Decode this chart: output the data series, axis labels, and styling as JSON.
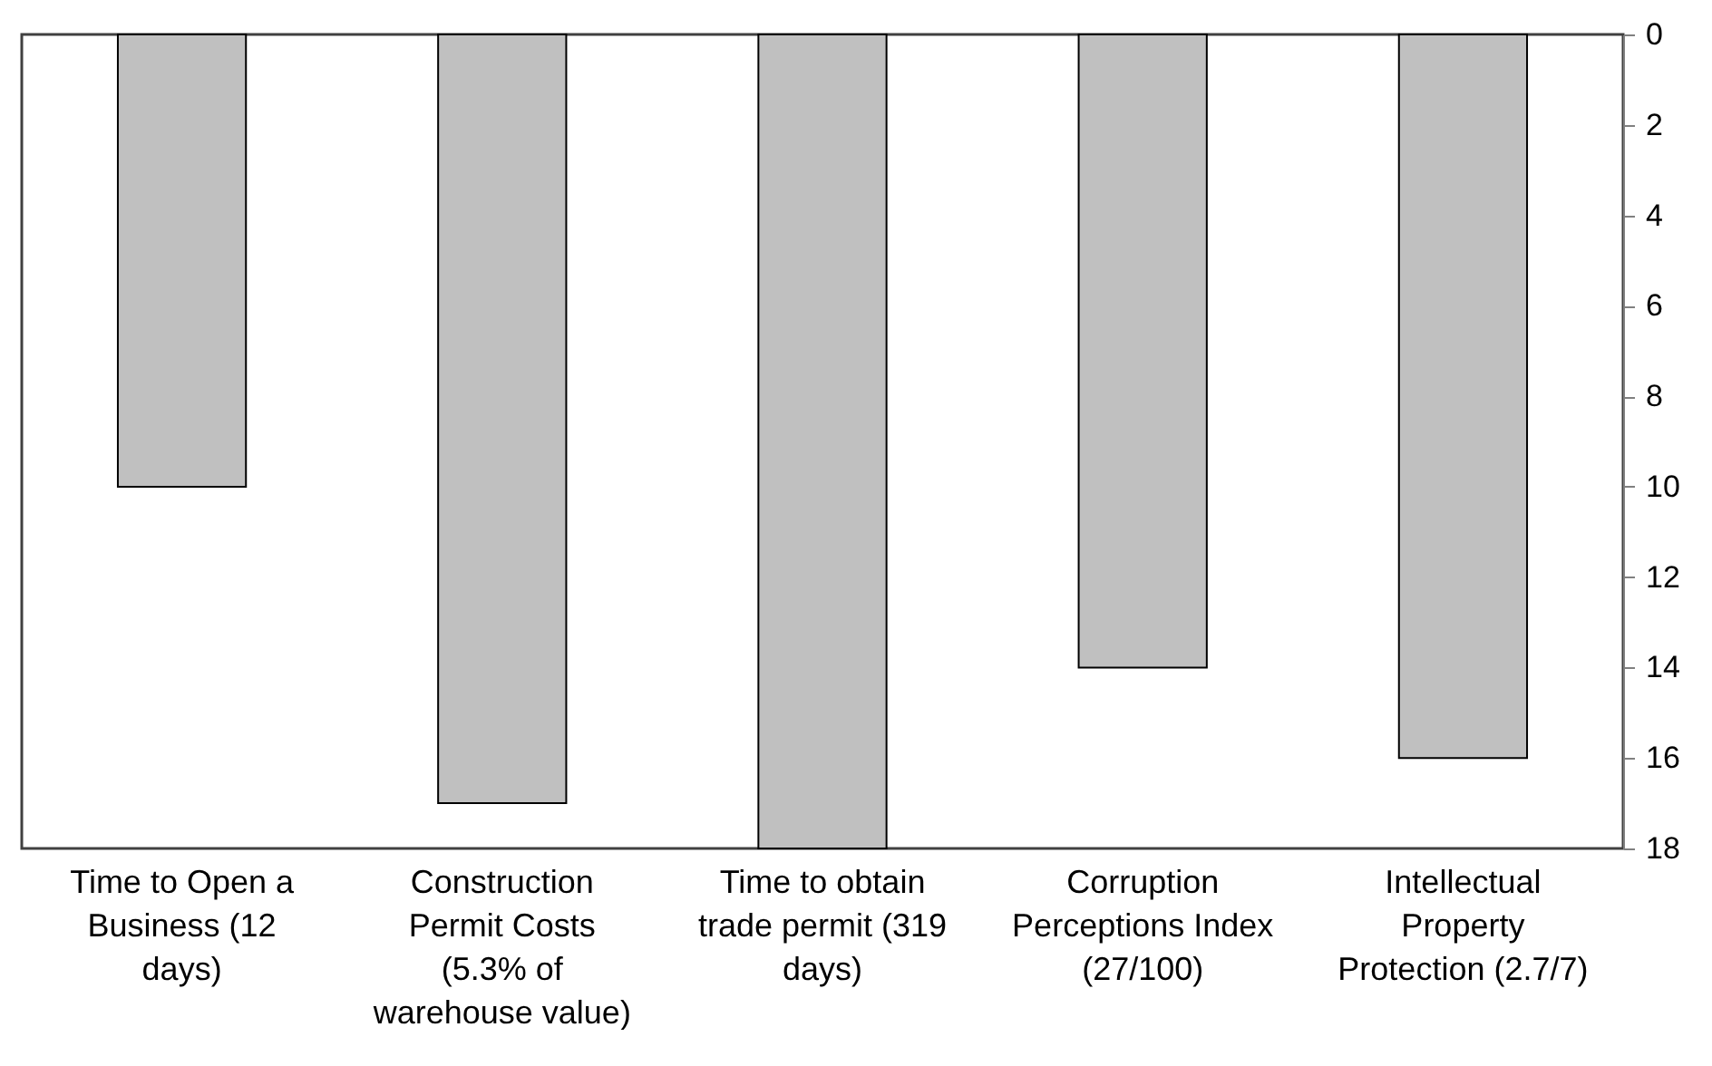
{
  "chart_data": {
    "type": "bar",
    "categories": [
      "Time to Open a Business (12 days)",
      "Construction Permit Costs (5.3% of warehouse value)",
      "Time to obtain trade permit (319 days)",
      "Corruption Perceptions Index (27/100)",
      "Intellectual Property Protection (2.7/7)"
    ],
    "values": [
      10,
      17,
      18,
      14,
      16
    ],
    "color": "#c0c0c0",
    "ylim": [
      18,
      0
    ],
    "yticks": [
      0,
      2,
      4,
      6,
      8,
      10,
      12,
      14,
      16,
      18
    ]
  }
}
